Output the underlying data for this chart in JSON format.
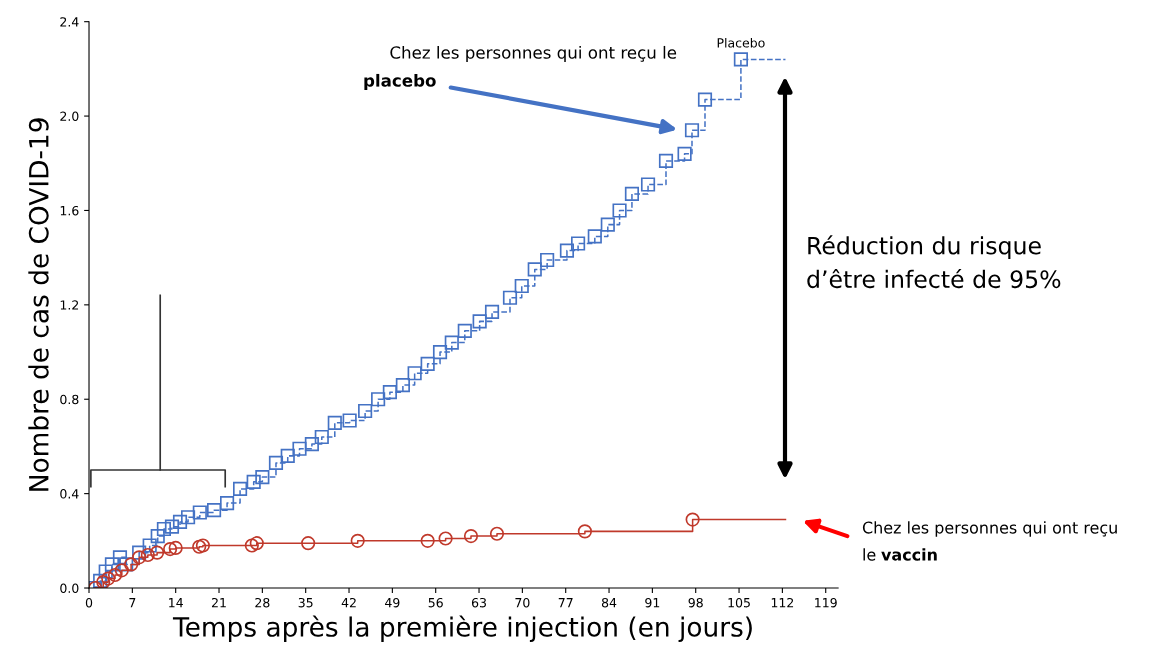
{
  "chart_data": {
    "type": "step",
    "xlabel": "Temps après la première injection (en jours)",
    "ylabel": "Nombre de cas de COVID-19",
    "xlim": [
      0,
      121
    ],
    "ylim": [
      0,
      2.4
    ],
    "xticks": [
      0,
      7,
      14,
      21,
      28,
      35,
      42,
      49,
      56,
      63,
      70,
      77,
      84,
      91,
      98,
      105,
      112,
      119
    ],
    "yticks": [
      {
        "value": 0,
        "label": "0.0"
      },
      0.4,
      0.8,
      1.2,
      1.6,
      {
        "value": 2,
        "label": "2.0"
      },
      2.4
    ],
    "grid": false,
    "legend": false,
    "series": [
      {
        "name": "Placebo",
        "color": "#4472c4",
        "marker": "square",
        "line_style": "dashed",
        "x": [
          1,
          1.8,
          2.7,
          3.7,
          5,
          6,
          8.1,
          9.8,
          11.1,
          12.1,
          13.4,
          14.7,
          16,
          17.9,
          20.2,
          22.3,
          24.4,
          26.6,
          28,
          30.2,
          32.1,
          34,
          36,
          37.6,
          39.7,
          42.1,
          44.6,
          46.7,
          48.6,
          50.7,
          52.6,
          54.7,
          56.7,
          58.6,
          60.7,
          63.1,
          65.1,
          68,
          69.9,
          72,
          74,
          77.2,
          79,
          81.7,
          83.8,
          85.7,
          87.7,
          90.3,
          93.2,
          96.2,
          97.4,
          99.5,
          105.3,
          112.5
        ],
        "values": [
          0.0,
          0.03,
          0.07,
          0.1,
          0.13,
          0.1,
          0.15,
          0.18,
          0.22,
          0.25,
          0.26,
          0.28,
          0.3,
          0.32,
          0.33,
          0.36,
          0.42,
          0.45,
          0.47,
          0.53,
          0.56,
          0.59,
          0.61,
          0.64,
          0.7,
          0.71,
          0.75,
          0.8,
          0.83,
          0.86,
          0.91,
          0.95,
          1.0,
          1.04,
          1.09,
          1.13,
          1.17,
          1.23,
          1.28,
          1.35,
          1.39,
          1.43,
          1.46,
          1.49,
          1.54,
          1.6,
          1.67,
          1.71,
          1.81,
          1.84,
          1.94,
          2.07,
          2.24,
          2.24
        ]
      },
      {
        "color": "#c0392b",
        "marker": "circle",
        "line_style": "solid",
        "x": [
          1,
          2.3,
          3.1,
          4.2,
          5.3,
          6.8,
          8.1,
          9.5,
          11,
          13.1,
          14,
          17.8,
          18.4,
          26.3,
          27.1,
          35.4,
          43.4,
          54.7,
          57.6,
          61.7,
          65.9,
          80.1,
          97.5,
          112.5
        ],
        "values": [
          0.0,
          0.025,
          0.04,
          0.055,
          0.075,
          0.1,
          0.13,
          0.14,
          0.15,
          0.165,
          0.17,
          0.175,
          0.18,
          0.18,
          0.19,
          0.19,
          0.2,
          0.2,
          0.21,
          0.22,
          0.23,
          0.24,
          0.29,
          0.29
        ]
      }
    ],
    "annotations": [
      "Chez les personnes qui ont reçu le",
      "placebo",
      "Réduction du risque\nd’être infecté de 95%",
      "Chez les personnes qui ont reçu",
      "le",
      "vaccin"
    ]
  }
}
